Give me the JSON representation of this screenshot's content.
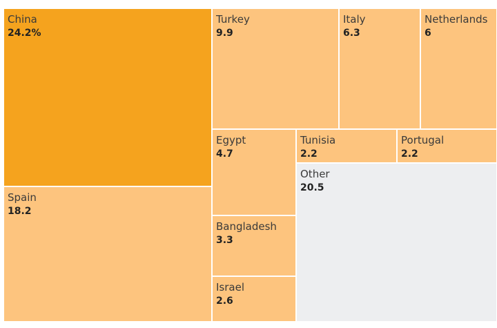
{
  "chart_data": {
    "type": "treemap",
    "colors": {
      "highlight": "#F5A31E",
      "default": "#FDC47E",
      "other": "#EDEEF0"
    },
    "items": [
      {
        "name": "China",
        "value": 24.2,
        "label": "24.2%",
        "color": "#F5A31E"
      },
      {
        "name": "Spain",
        "value": 18.2,
        "label": "18.2",
        "color": "#FDC47E"
      },
      {
        "name": "Turkey",
        "value": 9.9,
        "label": "9.9",
        "color": "#FDC47E"
      },
      {
        "name": "Italy",
        "value": 6.3,
        "label": "6.3",
        "color": "#FDC47E"
      },
      {
        "name": "Netherlands",
        "value": 6,
        "label": "6",
        "color": "#FDC47E"
      },
      {
        "name": "Egypt",
        "value": 4.7,
        "label": "4.7",
        "color": "#FDC47E"
      },
      {
        "name": "Tunisia",
        "value": 2.2,
        "label": "2.2",
        "color": "#FDC47E"
      },
      {
        "name": "Portugal",
        "value": 2.2,
        "label": "2.2",
        "color": "#FDC47E"
      },
      {
        "name": "Bangladesh",
        "value": 3.3,
        "label": "3.3",
        "color": "#FDC47E"
      },
      {
        "name": "Israel",
        "value": 2.6,
        "label": "2.6",
        "color": "#FDC47E"
      },
      {
        "name": "Other",
        "value": 20.5,
        "label": "20.5",
        "color": "#EDEEF0"
      }
    ]
  }
}
